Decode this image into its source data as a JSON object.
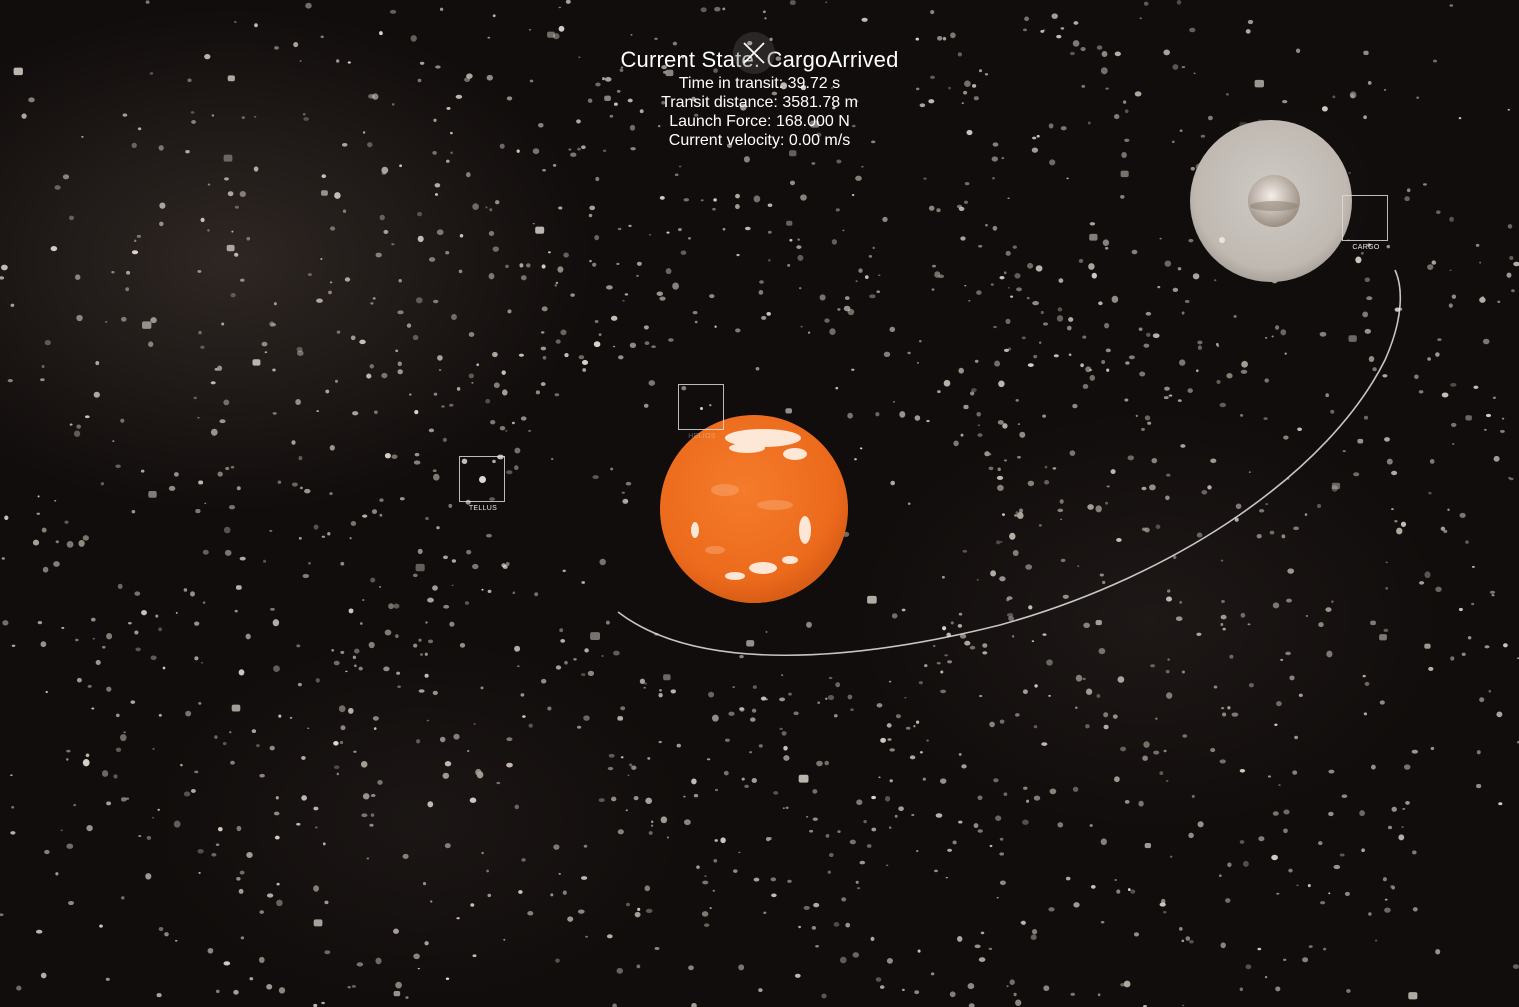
{
  "hud": {
    "state_label": "Current State:",
    "state_value": "CargoArrived",
    "time_in_transit": "Time in transit: 39.72 s",
    "transit_distance": "Transit distance: 3581.78 m",
    "launch_force": "Launch Force: 168.000 N",
    "current_velocity": "Current velocity: 0.00 m/s"
  },
  "close_button": {
    "icon": "close-icon"
  },
  "markers": {
    "tellus": "TELLUS",
    "sun": "HELIOS",
    "cargo": "CARGO"
  },
  "colors": {
    "sun": "#ee6e1e",
    "destination_planet": "#c9c4bd",
    "trajectory": "#e6e6e6",
    "hud_text": "#ffffff"
  }
}
